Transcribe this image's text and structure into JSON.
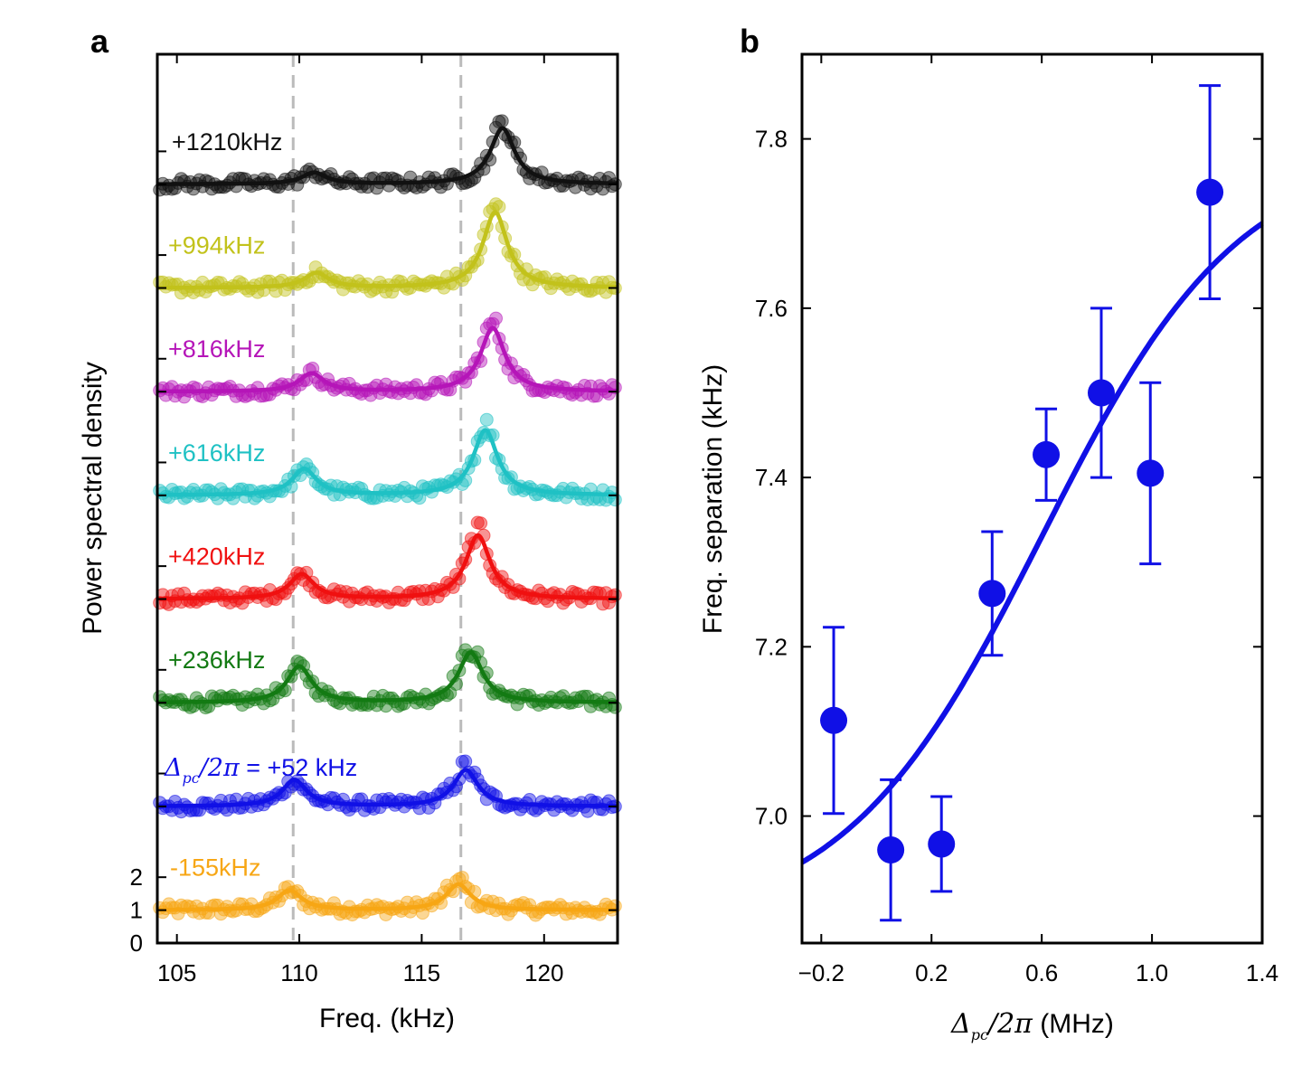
{
  "panels": {
    "a_letter": "a",
    "b_letter": "b"
  },
  "colors": {
    "black": "#111111",
    "olive": "#c2c21b",
    "magenta": "#b515b8",
    "cyan": "#1fc1c4",
    "red": "#f01010",
    "green": "#137a13",
    "blue": "#1010e6",
    "orange": "#f7a614",
    "dashed": "#bbbbbb"
  },
  "chart_data": [
    {
      "type": "line",
      "panel": "a",
      "xlabel": "Freq. (kHz)",
      "ylabel": "Power spectral density",
      "xlim": [
        104.2,
        123.0
      ],
      "x_ticks": [
        "105",
        "110",
        "115",
        "120"
      ],
      "x_tick_values": [
        105,
        110,
        115,
        120
      ],
      "y_ticks": [
        "0",
        "1",
        "2"
      ],
      "y_tick_values": [
        0,
        1,
        2
      ],
      "ylim": [
        0,
        27
      ],
      "trace_offset_step": 3.15,
      "dashed_lines_khz": [
        109.75,
        116.6
      ],
      "label_prefix": "Δ",
      "label_sub": "pc",
      "label_suffix": "/2π",
      "series": [
        {
          "label": "-155kHz",
          "color": "orange",
          "offset": 1.0,
          "f1": 109.6,
          "a1": 0.6,
          "f2": 116.5,
          "a2": 0.85,
          "w": 0.55
        },
        {
          "label": " = +52 kHz",
          "color": "blue",
          "offset": 4.15,
          "f1": 109.8,
          "a1": 0.8,
          "f2": 116.8,
          "a2": 1.2,
          "w": 0.55
        },
        {
          "label": "+236kHz",
          "color": "green",
          "offset": 7.3,
          "f1": 110.0,
          "a1": 1.1,
          "f2": 117.0,
          "a2": 1.65,
          "w": 0.55
        },
        {
          "label": "+420kHz",
          "color": "red",
          "offset": 10.45,
          "f1": 110.1,
          "a1": 0.75,
          "f2": 117.3,
          "a2": 2.1,
          "w": 0.55
        },
        {
          "label": "+616kHz",
          "color": "cyan",
          "offset": 13.6,
          "f1": 110.2,
          "a1": 0.8,
          "f2": 117.6,
          "a2": 2.15,
          "w": 0.55
        },
        {
          "label": "+816kHz",
          "color": "magenta",
          "offset": 16.75,
          "f1": 110.5,
          "a1": 0.55,
          "f2": 117.9,
          "a2": 2.1,
          "w": 0.55
        },
        {
          "label": "+994kHz",
          "color": "olive",
          "offset": 19.9,
          "f1": 110.7,
          "a1": 0.45,
          "f2": 118.0,
          "a2": 2.5,
          "w": 0.55
        },
        {
          "label": "+1210kHz",
          "color": "black",
          "offset": 23.05,
          "f1": 110.6,
          "a1": 0.35,
          "f2": 118.3,
          "a2": 1.85,
          "w": 0.55
        }
      ]
    },
    {
      "type": "scatter",
      "panel": "b",
      "xlabel_math": "Δ",
      "xlabel_sub": "pc",
      "xlabel_math2": "/2π",
      "xlabel_unit": " (MHz)",
      "ylabel": "Freq. separation (kHz)",
      "xlim": [
        -0.27,
        1.4
      ],
      "ylim": [
        6.85,
        7.9
      ],
      "x_ticks": [
        "−0.2",
        "0.2",
        "0.6",
        "1.0",
        "1.4"
      ],
      "x_tick_values": [
        -0.2,
        0.2,
        0.6,
        1.0,
        1.4
      ],
      "y_ticks": [
        "7.0",
        "7.2",
        "7.4",
        "7.6",
        "7.8"
      ],
      "y_tick_values": [
        7.0,
        7.2,
        7.4,
        7.6,
        7.8
      ],
      "points": [
        {
          "x": -0.155,
          "y": 7.113,
          "err": 0.11
        },
        {
          "x": 0.052,
          "y": 6.96,
          "err": 0.083
        },
        {
          "x": 0.236,
          "y": 6.967,
          "err": 0.056
        },
        {
          "x": 0.42,
          "y": 7.263,
          "err": 0.073
        },
        {
          "x": 0.616,
          "y": 7.427,
          "err": 0.054
        },
        {
          "x": 0.816,
          "y": 7.5,
          "err": 0.1
        },
        {
          "x": 0.994,
          "y": 7.405,
          "err": 0.107
        },
        {
          "x": 1.21,
          "y": 7.737,
          "err": 0.126
        }
      ],
      "fit": {
        "base": 6.87,
        "amp": 0.92,
        "center": 0.6,
        "width": 0.36
      }
    }
  ]
}
